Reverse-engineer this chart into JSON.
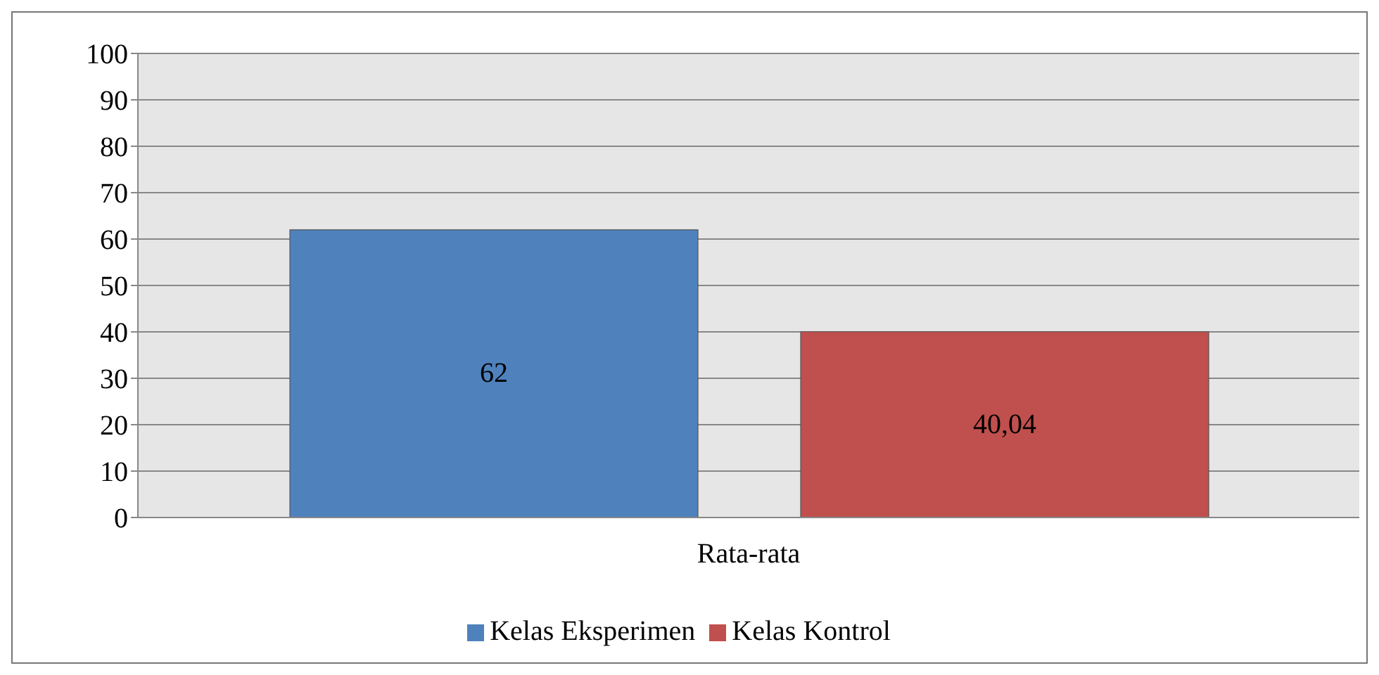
{
  "chart_data": {
    "type": "bar",
    "categories": [
      "Rata-rata"
    ],
    "series": [
      {
        "name": "Kelas Eksperimen",
        "color": "#4f81bd",
        "values": [
          62
        ],
        "value_labels": [
          "62"
        ]
      },
      {
        "name": "Kelas Kontrol",
        "color": "#c0504d",
        "values": [
          40.04
        ],
        "value_labels": [
          "40,04"
        ]
      }
    ],
    "ylim": [
      0,
      100
    ],
    "yticks": [
      0,
      10,
      20,
      30,
      40,
      50,
      60,
      70,
      80,
      90,
      100
    ],
    "grid": "y",
    "legend": "bottom"
  }
}
